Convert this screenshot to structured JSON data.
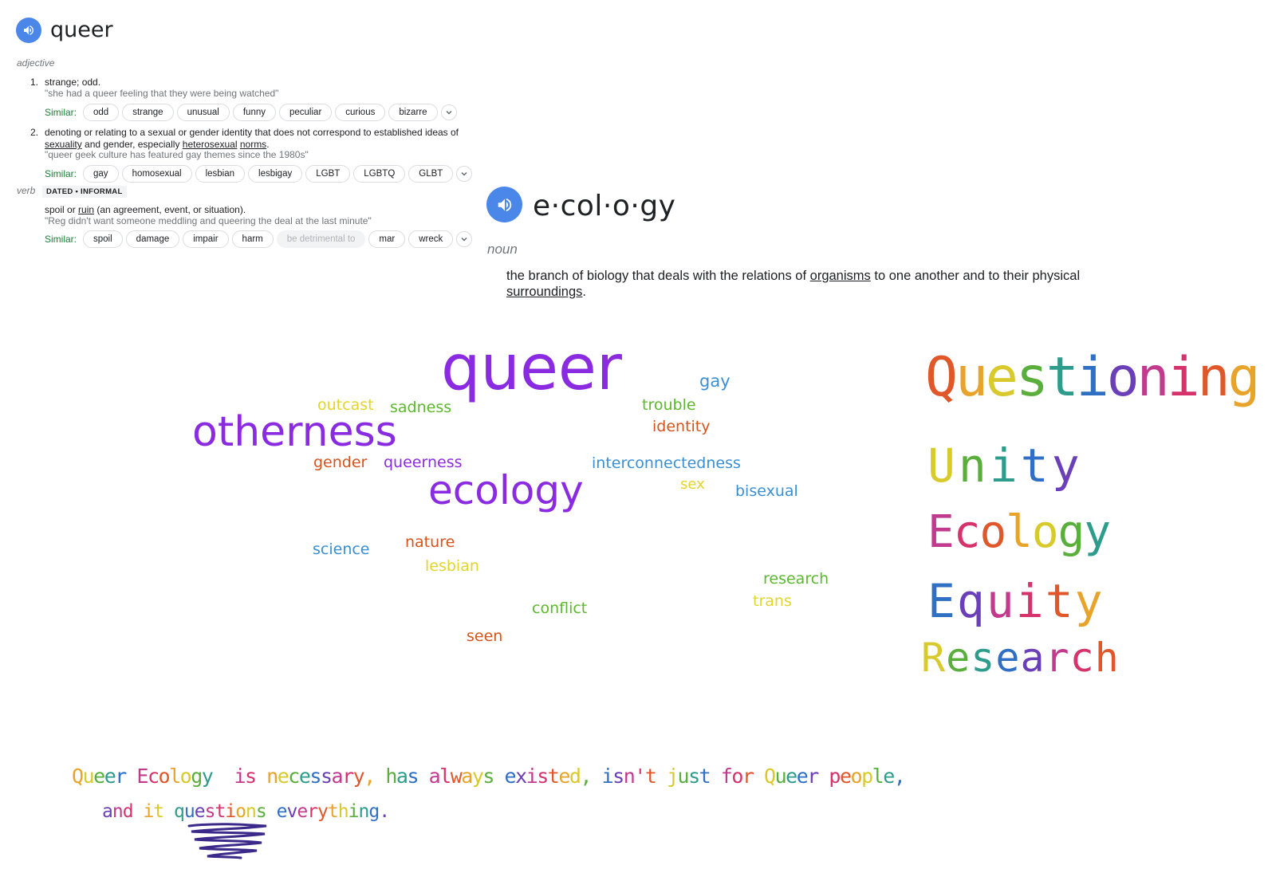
{
  "queer_card": {
    "word": "queer",
    "pos_adjective": "adjective",
    "def1_num": "1.",
    "def1_text": "strange; odd.",
    "def1_example": "\"she had a queer feeling that they were being watched\"",
    "similar_label": "Similar:",
    "similar1": [
      "odd",
      "strange",
      "unusual",
      "funny",
      "peculiar",
      "curious",
      "bizarre"
    ],
    "def2_num": "2.",
    "def2_line1": "denoting or relating to a sexual or gender identity that does not correspond to established ideas of",
    "def2_link_sexuality": "sexuality",
    "def2_mid": " and gender, especially ",
    "def2_link_heterosexual": "heterosexual",
    "def2_space": " ",
    "def2_link_norms": "norms",
    "def2_end": ".",
    "def2_example": "\"queer geek culture has featured gay themes since the 1980s\"",
    "similar2": [
      "gay",
      "homosexual",
      "lesbian",
      "lesbigay",
      "LGBT",
      "LGBTQ",
      "GLBT"
    ],
    "pos_verb": "verb",
    "verb_tag": "DATED • INFORMAL",
    "def3_start": "spoil or ",
    "def3_link_ruin": "ruin",
    "def3_end": " (an agreement, event, or situation).",
    "def3_example": "\"Reg didn't want someone meddling and queering the deal at the last minute\"",
    "similar3": [
      "spoil",
      "damage",
      "impair",
      "harm",
      "be detrimental to",
      "mar",
      "wreck"
    ]
  },
  "ecology_card": {
    "word": "e·col·o·gy",
    "pos": "noun",
    "def_start": "the branch of biology that deals with the relations of ",
    "def_link_organisms": "organisms",
    "def_mid": " to one another and to their physical ",
    "def_link_surroundings": "surroundings",
    "def_end": "."
  },
  "word_cloud": {
    "words": [
      {
        "text": "queer",
        "color": "#8a2be2"
      },
      {
        "text": "gay",
        "color": "#3a8fd4"
      },
      {
        "text": "outcast",
        "color": "#e3d42c"
      },
      {
        "text": "sadness",
        "color": "#5cb82e"
      },
      {
        "text": "trouble",
        "color": "#5cb82e"
      },
      {
        "text": "otherness",
        "color": "#8a2be2"
      },
      {
        "text": "identity",
        "color": "#d4541e"
      },
      {
        "text": "gender",
        "color": "#d4541e"
      },
      {
        "text": "queerness",
        "color": "#8a2be2"
      },
      {
        "text": "interconnectedness",
        "color": "#3a8fd4"
      },
      {
        "text": "ecology",
        "color": "#8a2be2"
      },
      {
        "text": "sex",
        "color": "#e3d42c"
      },
      {
        "text": "bisexual",
        "color": "#3a8fd4"
      },
      {
        "text": "science",
        "color": "#3a8fd4"
      },
      {
        "text": "nature",
        "color": "#d4541e"
      },
      {
        "text": "lesbian",
        "color": "#e3d42c"
      },
      {
        "text": "research",
        "color": "#5cb82e"
      },
      {
        "text": "trans",
        "color": "#e3d42c"
      },
      {
        "text": "conflict",
        "color": "#5cb82e"
      },
      {
        "text": "seen",
        "color": "#d4541e"
      }
    ]
  },
  "acrostic": {
    "q_line": "Questioning",
    "u_line": "Unity",
    "e1_line": "Ecology",
    "e2_line": "Equity",
    "r_line": "Research"
  },
  "statement": {
    "line1": "Queer Ecology  is necessary, has always existed, isn't just for Queer people,",
    "line2_start": "and it ",
    "line2_emph": "questions",
    "line2_end": " everything."
  }
}
